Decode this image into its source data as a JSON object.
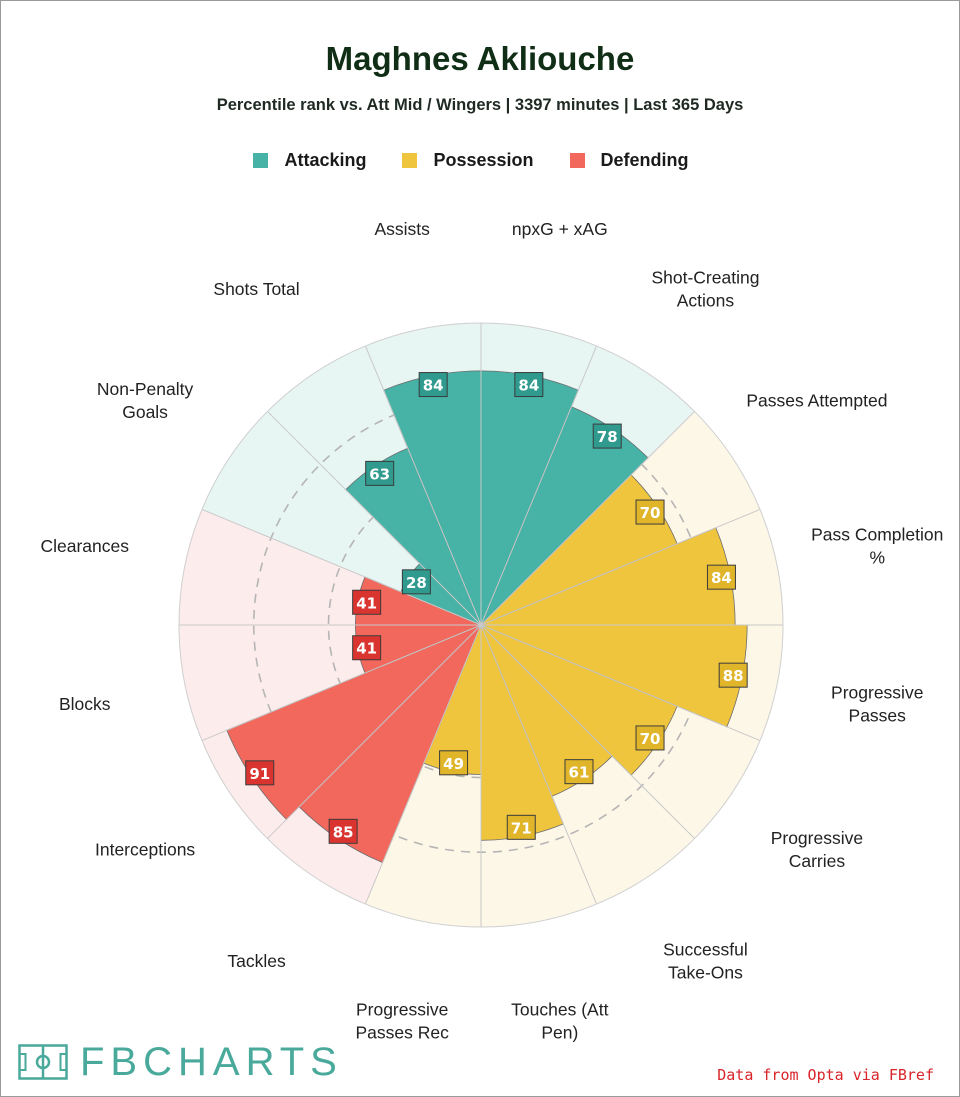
{
  "header": {
    "title": "Maghnes Akliouche",
    "subtitle": "Percentile rank vs. Att Mid / Wingers | 3397 minutes | Last 365 Days"
  },
  "legend": [
    {
      "label": "Attacking",
      "color": "#46b3a6"
    },
    {
      "label": "Possession",
      "color": "#f0c53e"
    },
    {
      "label": "Defending",
      "color": "#f2685d"
    }
  ],
  "chart_data": {
    "type": "polar-bar",
    "max": 100,
    "gridlines": true,
    "metrics": [
      {
        "label": "npxG + xAG",
        "value": 84,
        "group": "Attacking"
      },
      {
        "label": "Shot-Creating Actions",
        "value": 78,
        "group": "Attacking"
      },
      {
        "label": "Passes Attempted",
        "value": 70,
        "group": "Possession"
      },
      {
        "label": "Pass Completion %",
        "value": 84,
        "group": "Possession"
      },
      {
        "label": "Progressive Passes",
        "value": 88,
        "group": "Possession"
      },
      {
        "label": "Progressive Carries",
        "value": 70,
        "group": "Possession"
      },
      {
        "label": "Successful Take-Ons",
        "value": 61,
        "group": "Possession"
      },
      {
        "label": "Touches (Att Pen)",
        "value": 71,
        "group": "Possession"
      },
      {
        "label": "Progressive Passes Rec",
        "value": 49,
        "group": "Possession"
      },
      {
        "label": "Tackles",
        "value": 85,
        "group": "Defending"
      },
      {
        "label": "Interceptions",
        "value": 91,
        "group": "Defending"
      },
      {
        "label": "Blocks",
        "value": 41,
        "group": "Defending"
      },
      {
        "label": "Clearances",
        "value": 41,
        "group": "Defending"
      },
      {
        "label": "Non-Penalty Goals",
        "value": 28,
        "group": "Attacking"
      },
      {
        "label": "Shots Total",
        "value": 63,
        "group": "Attacking"
      },
      {
        "label": "Assists",
        "value": 84,
        "group": "Attacking"
      }
    ],
    "group_colors": {
      "Attacking": {
        "bar": "#46b3a6",
        "bg": "#e7f5f3",
        "label_bg": "#2f9a8d"
      },
      "Possession": {
        "bar": "#f0c53e",
        "bg": "#fdf7e8",
        "label_bg": "#e0b52a"
      },
      "Defending": {
        "bar": "#f2685d",
        "bg": "#fdecec",
        "label_bg": "#d9342f"
      }
    }
  },
  "footer": {
    "logo_text": "FBCHARTS",
    "logo_icon": "pitch-icon",
    "source": "Data from Opta via FBref"
  }
}
